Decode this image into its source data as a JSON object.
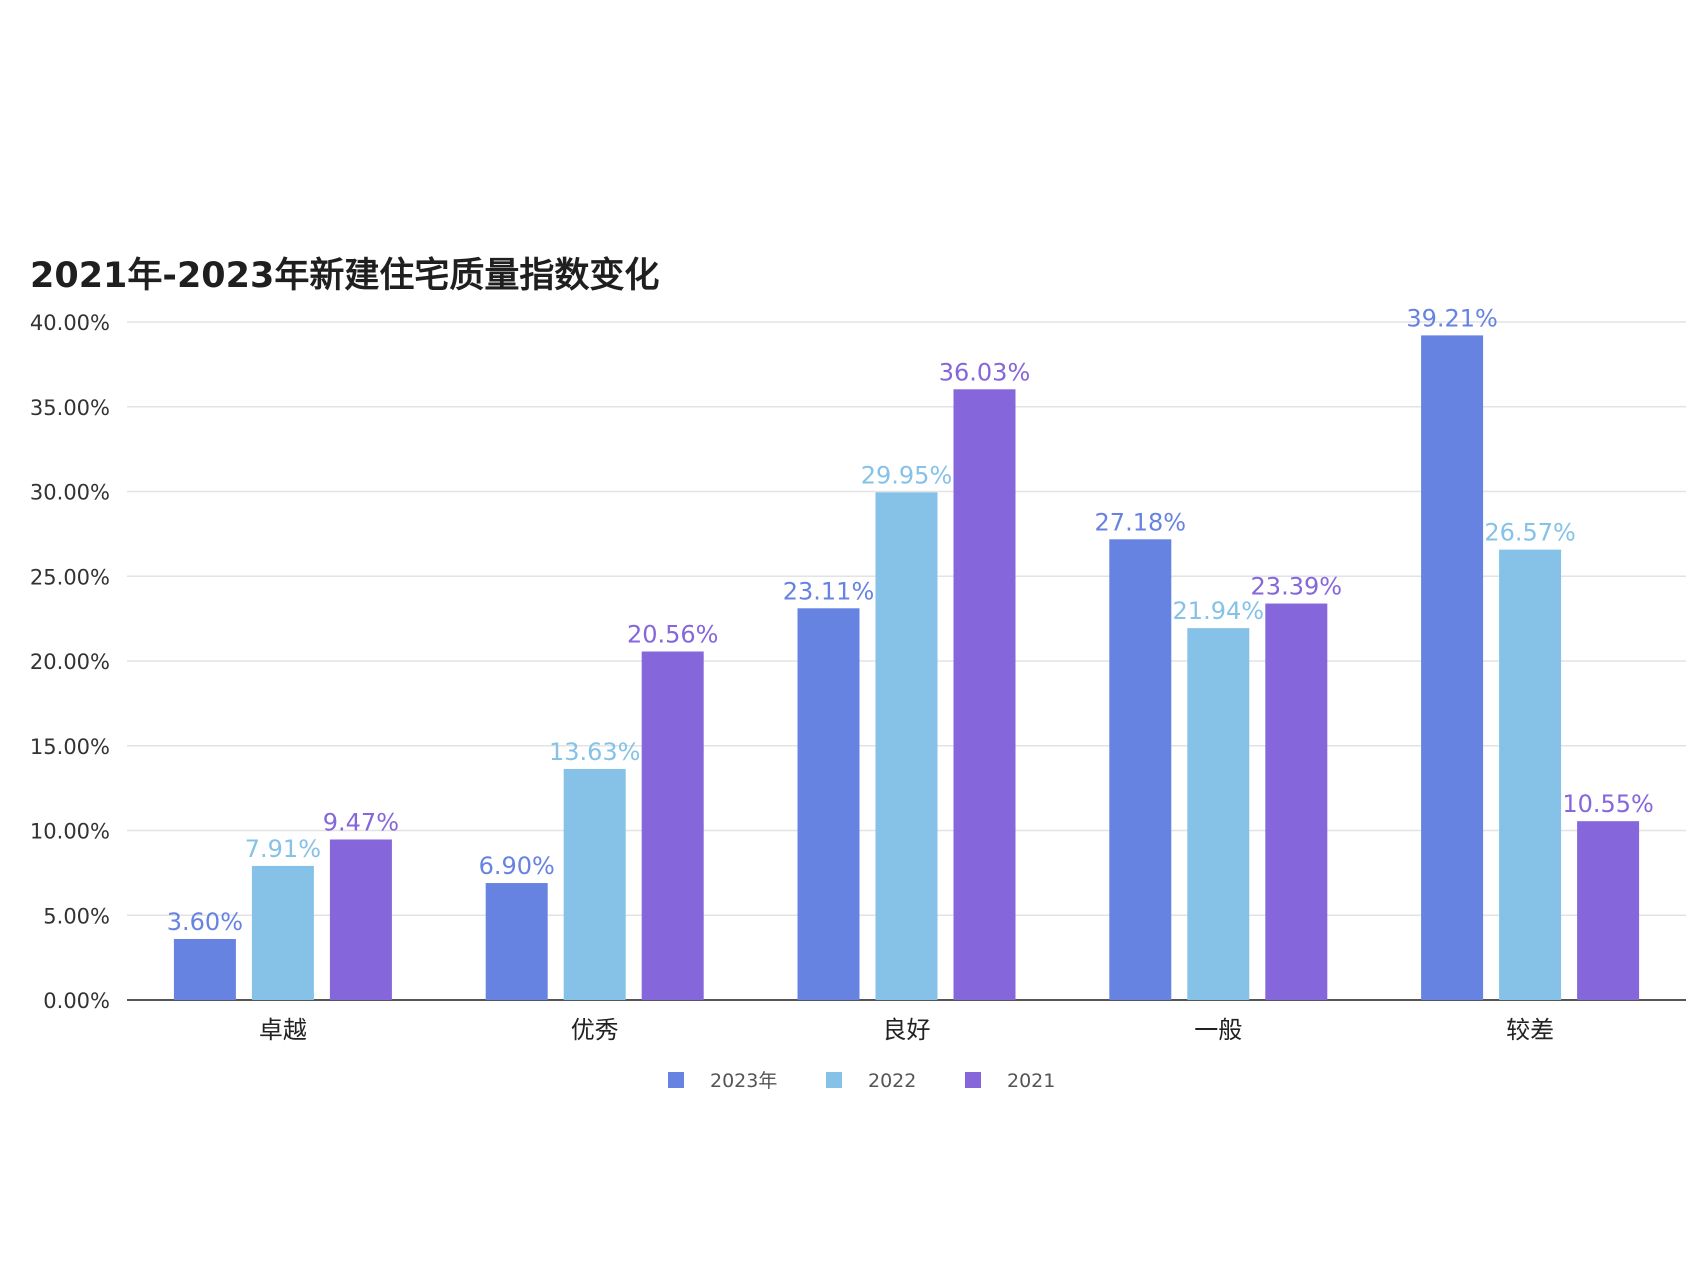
{
  "chart_data": {
    "type": "bar",
    "title": "2021年-2023年新建住宅质量指数变化",
    "xlabel": "",
    "ylabel": "",
    "categories": [
      "卓越",
      "优秀",
      "良好",
      "一般",
      "较差"
    ],
    "series": [
      {
        "name": "2023年",
        "color": "#6683e2",
        "values": [
          3.6,
          6.9,
          23.11,
          27.18,
          39.21
        ],
        "labels": [
          "3.60%",
          "6.90%",
          "23.11%",
          "27.18%",
          "39.21%"
        ]
      },
      {
        "name": "2022",
        "color": "#86c2e7",
        "values": [
          7.91,
          13.63,
          29.95,
          21.94,
          26.57
        ],
        "labels": [
          "7.91%",
          "13.63%",
          "29.95%",
          "21.94%",
          "26.57%"
        ]
      },
      {
        "name": "2021",
        "color": "#8566db",
        "values": [
          9.47,
          20.56,
          36.03,
          23.39,
          10.55
        ],
        "labels": [
          "9.47%",
          "20.56%",
          "36.03%",
          "23.39%",
          "10.55%"
        ]
      }
    ],
    "ylim": [
      0,
      40
    ],
    "yticks": [
      0,
      5,
      10,
      15,
      20,
      25,
      30,
      35,
      40
    ],
    "ytick_labels": [
      "0.00%",
      "5.00%",
      "10.00%",
      "15.00%",
      "20.00%",
      "25.00%",
      "30.00%",
      "35.00%",
      "40.00%"
    ],
    "grid": true,
    "legend": "bottom-center"
  }
}
